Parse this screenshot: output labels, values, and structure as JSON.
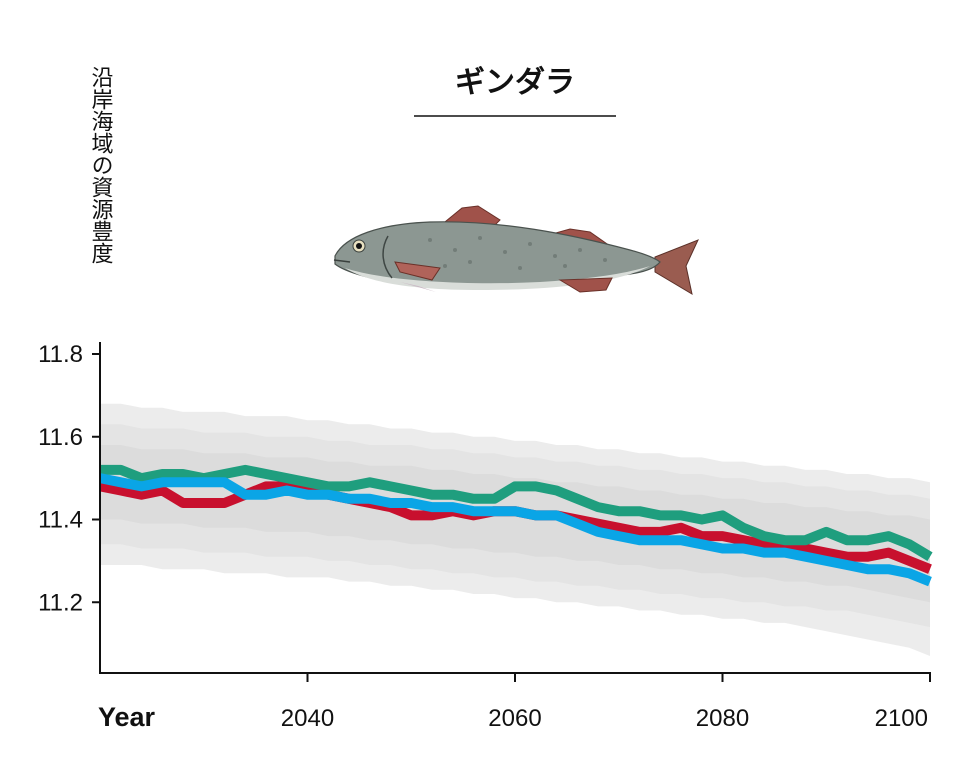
{
  "chart_data": {
    "type": "line",
    "title": "ギンダラ",
    "ylabel": "沿岸海域の資源豊度",
    "xlabel": "Year",
    "xlim": [
      2020,
      2100
    ],
    "ylim": [
      11.0,
      11.8
    ],
    "xticks": [
      2040,
      2060,
      2080,
      2100
    ],
    "yticks": [
      11.2,
      11.4,
      11.6,
      11.8
    ],
    "ytick_labels": [
      "11.2",
      "11.4",
      "11.6",
      "11.8"
    ],
    "grid": false,
    "legend": "none",
    "x": [
      2020,
      2022,
      2024,
      2026,
      2028,
      2030,
      2032,
      2034,
      2036,
      2038,
      2040,
      2042,
      2044,
      2046,
      2048,
      2050,
      2052,
      2054,
      2056,
      2058,
      2060,
      2062,
      2064,
      2066,
      2068,
      2070,
      2072,
      2074,
      2076,
      2078,
      2080,
      2082,
      2084,
      2086,
      2088,
      2090,
      2092,
      2094,
      2096,
      2098,
      2100
    ],
    "series": [
      {
        "color": "#c8102e",
        "values": [
          11.48,
          11.47,
          11.46,
          11.47,
          11.44,
          11.44,
          11.44,
          11.46,
          11.48,
          11.48,
          11.47,
          11.46,
          11.45,
          11.44,
          11.43,
          11.41,
          11.41,
          11.42,
          11.41,
          11.42,
          11.42,
          11.41,
          11.41,
          11.4,
          11.39,
          11.38,
          11.37,
          11.37,
          11.38,
          11.36,
          11.36,
          11.35,
          11.34,
          11.34,
          11.33,
          11.32,
          11.31,
          11.31,
          11.32,
          11.3,
          11.28
        ]
      },
      {
        "color": "#1f9e7e",
        "values": [
          11.52,
          11.52,
          11.5,
          11.51,
          11.51,
          11.5,
          11.51,
          11.52,
          11.51,
          11.5,
          11.49,
          11.48,
          11.48,
          11.49,
          11.48,
          11.47,
          11.46,
          11.46,
          11.45,
          11.45,
          11.48,
          11.48,
          11.47,
          11.45,
          11.43,
          11.42,
          11.42,
          11.41,
          11.41,
          11.4,
          11.41,
          11.38,
          11.36,
          11.35,
          11.35,
          11.37,
          11.35,
          11.35,
          11.36,
          11.34,
          11.31
        ]
      },
      {
        "color": "#0aa5e6",
        "values": [
          11.5,
          11.49,
          11.48,
          11.49,
          11.49,
          11.49,
          11.49,
          11.46,
          11.46,
          11.47,
          11.46,
          11.46,
          11.45,
          11.45,
          11.44,
          11.44,
          11.43,
          11.43,
          11.42,
          11.42,
          11.42,
          11.41,
          11.41,
          11.39,
          11.37,
          11.36,
          11.35,
          11.35,
          11.35,
          11.34,
          11.33,
          11.33,
          11.32,
          11.32,
          11.31,
          11.3,
          11.29,
          11.28,
          11.28,
          11.27,
          11.25
        ]
      }
    ],
    "bands": [
      {
        "color": "#ececec",
        "upper": [
          11.68,
          11.68,
          11.67,
          11.67,
          11.66,
          11.66,
          11.66,
          11.65,
          11.65,
          11.65,
          11.64,
          11.64,
          11.63,
          11.63,
          11.62,
          11.62,
          11.61,
          11.61,
          11.6,
          11.6,
          11.59,
          11.59,
          11.58,
          11.58,
          11.57,
          11.57,
          11.56,
          11.56,
          11.55,
          11.55,
          11.54,
          11.54,
          11.53,
          11.53,
          11.52,
          11.52,
          11.51,
          11.51,
          11.5,
          11.5,
          11.49
        ],
        "lower": [
          11.29,
          11.29,
          11.29,
          11.28,
          11.28,
          11.28,
          11.27,
          11.27,
          11.27,
          11.26,
          11.26,
          11.26,
          11.25,
          11.25,
          11.24,
          11.24,
          11.23,
          11.23,
          11.22,
          11.22,
          11.21,
          11.21,
          11.2,
          11.2,
          11.19,
          11.19,
          11.18,
          11.18,
          11.17,
          11.17,
          11.16,
          11.16,
          11.15,
          11.15,
          11.14,
          11.13,
          11.12,
          11.11,
          11.1,
          11.09,
          11.07
        ]
      },
      {
        "color": "#e4e4e4",
        "upper": [
          11.63,
          11.63,
          11.62,
          11.62,
          11.62,
          11.61,
          11.61,
          11.61,
          11.6,
          11.6,
          11.6,
          11.59,
          11.59,
          11.58,
          11.58,
          11.58,
          11.57,
          11.57,
          11.56,
          11.56,
          11.55,
          11.55,
          11.54,
          11.54,
          11.53,
          11.53,
          11.52,
          11.52,
          11.51,
          11.51,
          11.5,
          11.5,
          11.49,
          11.49,
          11.48,
          11.48,
          11.47,
          11.47,
          11.46,
          11.46,
          11.45
        ],
        "lower": [
          11.34,
          11.34,
          11.33,
          11.33,
          11.33,
          11.32,
          11.32,
          11.32,
          11.31,
          11.31,
          11.31,
          11.3,
          11.3,
          11.29,
          11.29,
          11.28,
          11.28,
          11.27,
          11.27,
          11.26,
          11.26,
          11.25,
          11.25,
          11.24,
          11.24,
          11.23,
          11.23,
          11.22,
          11.22,
          11.21,
          11.21,
          11.2,
          11.2,
          11.19,
          11.19,
          11.18,
          11.18,
          11.17,
          11.16,
          11.15,
          11.14
        ]
      },
      {
        "color": "#dcdcdc",
        "upper": [
          11.58,
          11.58,
          11.57,
          11.57,
          11.57,
          11.56,
          11.56,
          11.56,
          11.55,
          11.55,
          11.55,
          11.54,
          11.54,
          11.53,
          11.53,
          11.53,
          11.52,
          11.52,
          11.51,
          11.51,
          11.5,
          11.5,
          11.49,
          11.49,
          11.48,
          11.48,
          11.47,
          11.47,
          11.46,
          11.46,
          11.45,
          11.45,
          11.44,
          11.44,
          11.43,
          11.43,
          11.42,
          11.42,
          11.41,
          11.41,
          11.4
        ],
        "lower": [
          11.4,
          11.4,
          11.39,
          11.39,
          11.39,
          11.38,
          11.38,
          11.38,
          11.37,
          11.37,
          11.37,
          11.36,
          11.36,
          11.35,
          11.35,
          11.34,
          11.34,
          11.33,
          11.33,
          11.32,
          11.32,
          11.31,
          11.31,
          11.3,
          11.3,
          11.29,
          11.29,
          11.28,
          11.28,
          11.27,
          11.27,
          11.26,
          11.26,
          11.25,
          11.25,
          11.24,
          11.24,
          11.23,
          11.22,
          11.21,
          11.2
        ]
      }
    ]
  },
  "fish_image": {
    "icon": "sablefish-illustration-icon",
    "colors": {
      "body": "#8a9590",
      "belly": "#d8dcd8",
      "fins": "#a0524a",
      "eye": "#e8e0c0"
    }
  }
}
